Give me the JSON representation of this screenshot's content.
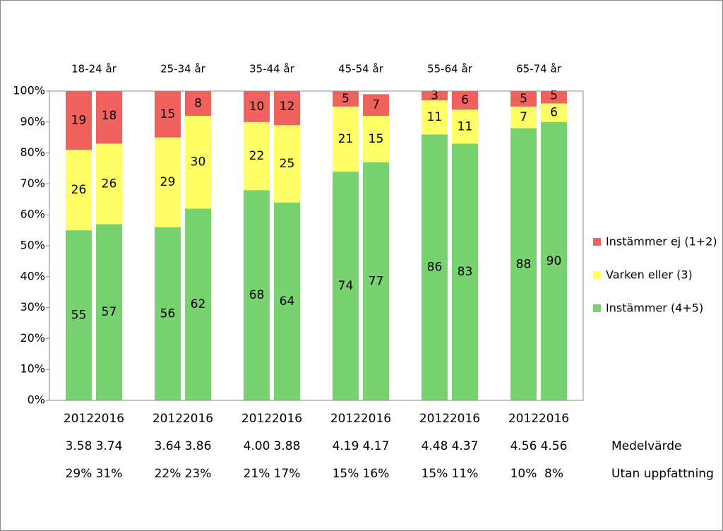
{
  "chart_data": {
    "type": "stacked_bar",
    "groups": [
      "18-24 år",
      "25-34 år",
      "35-44 år",
      "45-54 år",
      "55-64 år",
      "65-74 år"
    ],
    "categories": [
      "2012",
      "2016",
      "2012",
      "2016",
      "2012",
      "2016",
      "2012",
      "2016",
      "2012",
      "2016",
      "2012",
      "2016"
    ],
    "series": [
      {
        "name": "Instämmer (4+5)",
        "color": "#77d26f",
        "values": [
          55,
          57,
          56,
          62,
          68,
          64,
          74,
          77,
          86,
          83,
          88,
          90
        ]
      },
      {
        "name": "Varken eller (3)",
        "color": "#ffff66",
        "values": [
          26,
          26,
          29,
          30,
          22,
          25,
          21,
          15,
          11,
          11,
          7,
          6
        ]
      },
      {
        "name": "Instämmer ej (1+2)",
        "color": "#f0625e",
        "values": [
          19,
          18,
          15,
          8,
          10,
          12,
          5,
          7,
          3,
          6,
          5,
          5
        ]
      }
    ],
    "ylim": [
      0,
      100
    ],
    "yticks": [
      {
        "value": 0,
        "label": "0%"
      },
      {
        "value": 10,
        "label": "10%"
      },
      {
        "value": 20,
        "label": "20%"
      },
      {
        "value": 30,
        "label": "30%"
      },
      {
        "value": 40,
        "label": "40%"
      },
      {
        "value": 50,
        "label": "50%"
      },
      {
        "value": 60,
        "label": "60%"
      },
      {
        "value": 70,
        "label": "70%"
      },
      {
        "value": 80,
        "label": "80%"
      },
      {
        "value": 90,
        "label": "90%"
      },
      {
        "value": 100,
        "label": "100%"
      }
    ],
    "legend": "right",
    "rows": [
      {
        "label": "Medelvärde",
        "values": [
          3.58,
          3.74,
          3.64,
          3.86,
          4.0,
          3.88,
          4.19,
          4.17,
          4.48,
          4.37,
          4.56,
          4.56
        ],
        "value_labels": [
          "3.58",
          "3.74",
          "3.64",
          "3.86",
          "4.00",
          "3.88",
          "4.19",
          "4.17",
          "4.48",
          "4.37",
          "4.56",
          "4.56"
        ]
      },
      {
        "label": "Utan uppfattning",
        "values": [
          29,
          31,
          22,
          23,
          21,
          17,
          15,
          16,
          15,
          11,
          10,
          8
        ],
        "value_labels": [
          "29%",
          "31%",
          "22%",
          "23%",
          "21%",
          "17%",
          "15%",
          "16%",
          "15%",
          "11%",
          "10%",
          "8%"
        ]
      }
    ]
  }
}
